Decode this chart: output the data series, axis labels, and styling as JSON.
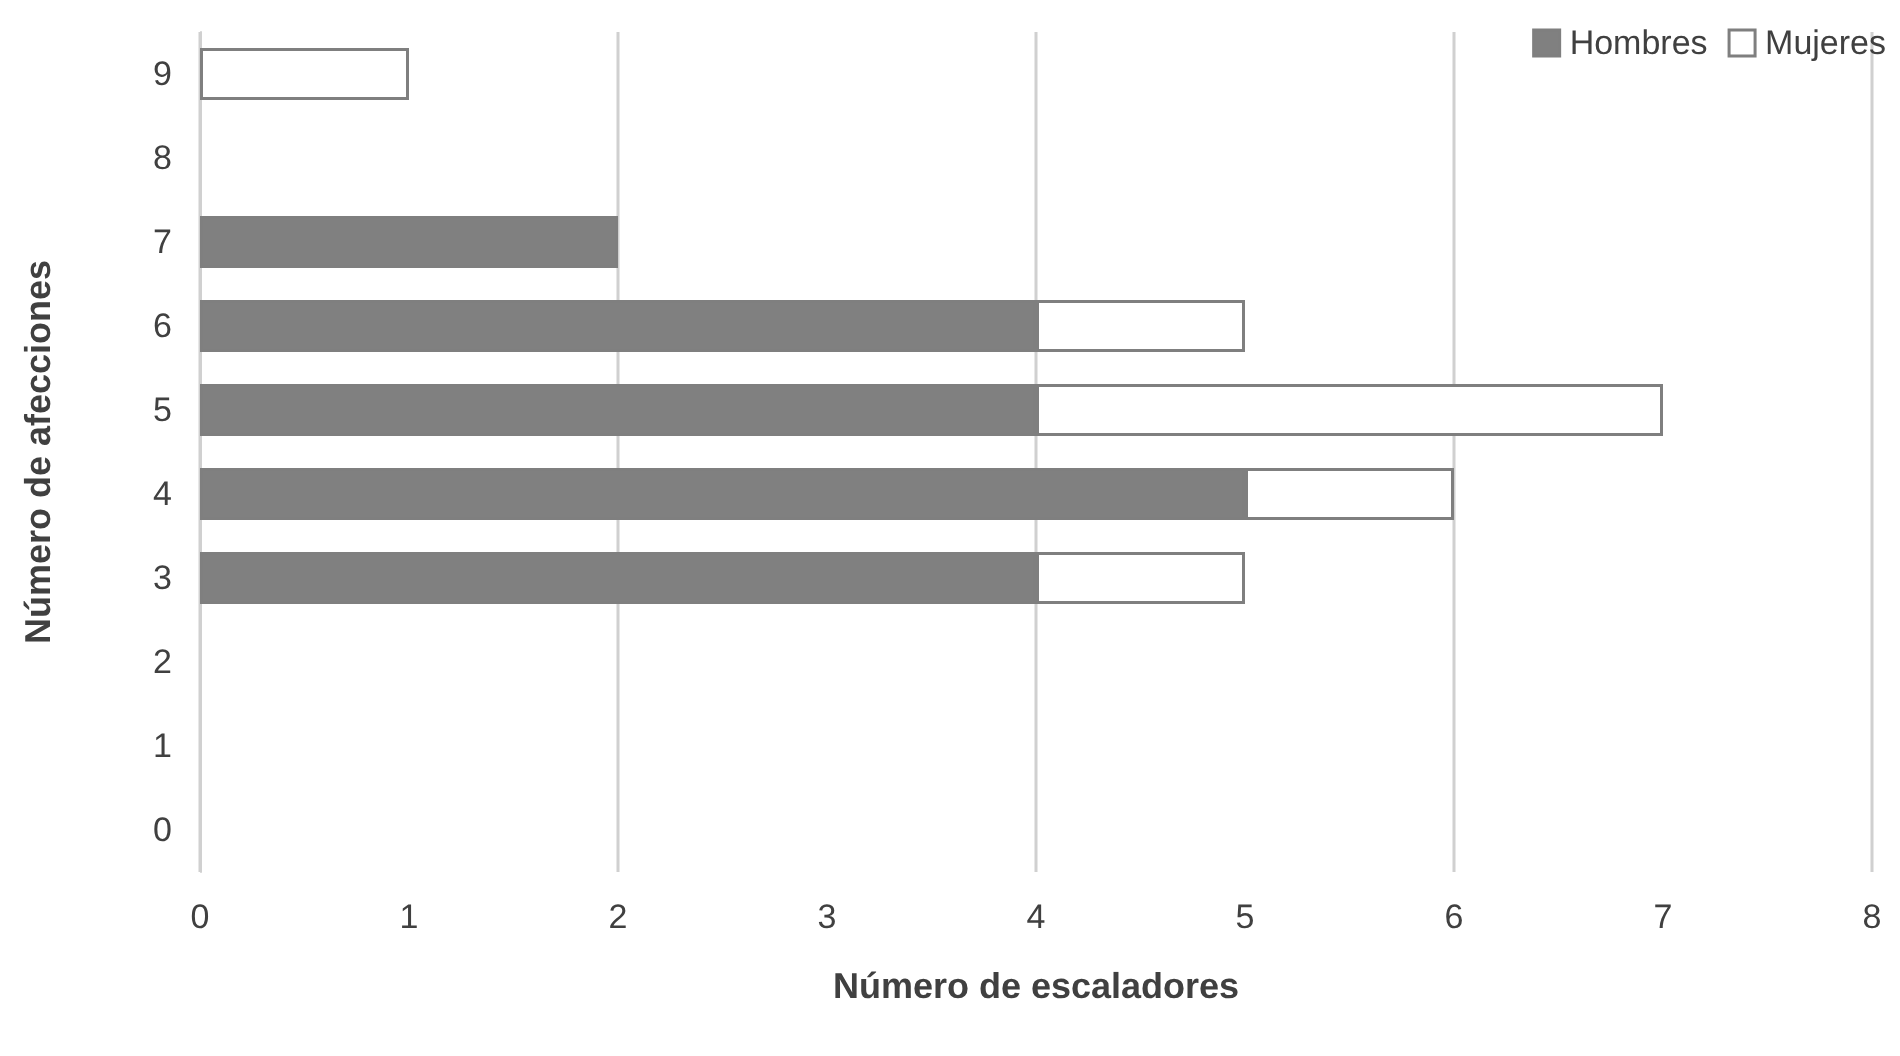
{
  "chart_data": {
    "type": "bar",
    "orientation": "horizontal",
    "stacked": true,
    "xlabel": "Número de escaladores",
    "ylabel": "Número de afecciones",
    "categories": [
      "9",
      "8",
      "7",
      "6",
      "5",
      "4",
      "3",
      "2",
      "1",
      "0"
    ],
    "series": [
      {
        "name": "Hombres",
        "color": "#808080",
        "values": [
          0,
          0,
          2,
          4,
          4,
          5,
          4,
          0,
          0,
          0
        ]
      },
      {
        "name": "Mujeres",
        "color": "#ffffff",
        "values": [
          1,
          0,
          0,
          1,
          3,
          1,
          1,
          0,
          0,
          0
        ]
      }
    ],
    "xlim": [
      0,
      8
    ],
    "xticks": [
      0,
      1,
      2,
      3,
      4,
      5,
      6,
      7,
      8
    ],
    "grid": "x",
    "legend": "top right"
  }
}
